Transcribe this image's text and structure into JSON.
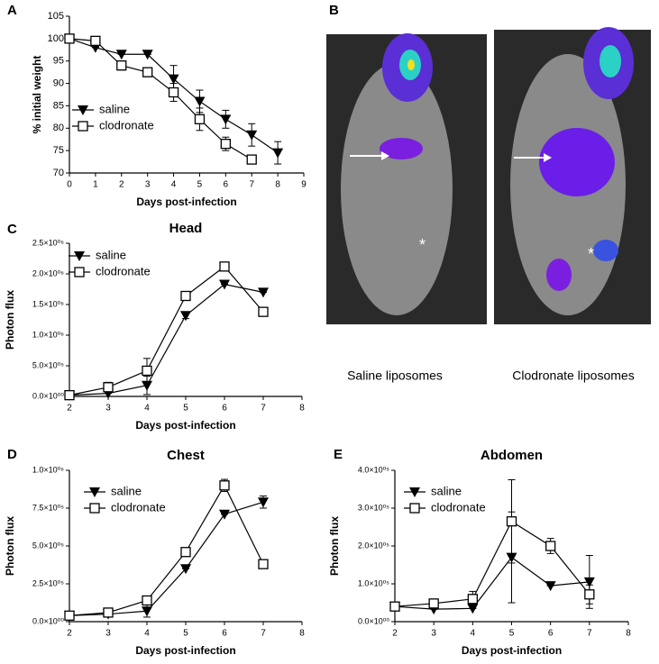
{
  "chart_data": [
    {
      "type": "line",
      "label": "A",
      "xlabel": "Days post-infection",
      "ylabel": "% initial weight",
      "x": [
        0,
        1,
        2,
        3,
        4,
        5,
        6,
        7,
        8
      ],
      "xlim": [
        0,
        9
      ],
      "xticks": [
        0,
        1,
        2,
        3,
        4,
        5,
        6,
        7,
        8,
        9
      ],
      "ylim": [
        70,
        105
      ],
      "yticks": [
        70,
        75,
        80,
        85,
        90,
        95,
        100,
        105
      ],
      "series": [
        {
          "name": "saline",
          "color": "#000000",
          "marker": "triangle-down",
          "values": [
            100,
            98,
            96.5,
            96.5,
            91,
            86,
            82,
            78.5,
            74.5
          ],
          "errors": [
            0,
            0,
            0,
            0,
            3,
            2.5,
            2,
            2.5,
            2.5
          ]
        },
        {
          "name": "clodronate",
          "color": "#000000",
          "marker": "square-open",
          "values": [
            100,
            99.5,
            94,
            92.5,
            88,
            82,
            76.5,
            73,
            null
          ],
          "errors": [
            0,
            0,
            1,
            1,
            2,
            2.5,
            1.5,
            0,
            null
          ]
        }
      ]
    },
    {
      "type": "line",
      "label": "C",
      "title": "Head",
      "xlabel": "Days post-infection",
      "ylabel": "Photon flux",
      "x": [
        2,
        3,
        4,
        5,
        6,
        7
      ],
      "xlim": [
        2,
        8
      ],
      "xticks": [
        2,
        3,
        4,
        5,
        6,
        7,
        8
      ],
      "ylim": [
        0,
        2500000
      ],
      "yticks": [
        {
          "value": 0,
          "label": "0.0×10⁰⁰"
        },
        {
          "value": 500000,
          "label": "5.0×10⁰⁵"
        },
        {
          "value": 1000000,
          "label": "1.0×10⁰⁶"
        },
        {
          "value": 1500000,
          "label": "1.5×10⁰⁶"
        },
        {
          "value": 2000000,
          "label": "2.0×10⁰⁶"
        },
        {
          "value": 2500000,
          "label": "2.5×10⁰⁶"
        }
      ],
      "series": [
        {
          "name": "saline",
          "color": "#000000",
          "marker": "triangle-down",
          "values": [
            20000,
            50000,
            180000,
            1320000,
            1830000,
            1700000
          ],
          "errors": [
            0,
            0,
            150000,
            50000,
            0,
            0
          ]
        },
        {
          "name": "clodronate",
          "color": "#000000",
          "marker": "square-open",
          "values": [
            20000,
            150000,
            420000,
            1640000,
            2120000,
            1380000
          ],
          "errors": [
            0,
            80000,
            200000,
            0,
            0,
            0
          ]
        }
      ]
    },
    {
      "type": "line",
      "label": "D",
      "title": "Chest",
      "xlabel": "Days post-infection",
      "ylabel": "Photon flux",
      "x": [
        2,
        3,
        4,
        5,
        6,
        7
      ],
      "xlim": [
        2,
        8
      ],
      "xticks": [
        2,
        3,
        4,
        5,
        6,
        7,
        8
      ],
      "ylim": [
        0,
        1000000
      ],
      "yticks": [
        {
          "value": 0,
          "label": "0.0×10⁰⁰"
        },
        {
          "value": 250000,
          "label": "2.5×10⁰⁵"
        },
        {
          "value": 500000,
          "label": "5.0×10⁰⁵"
        },
        {
          "value": 750000,
          "label": "7.5×10⁰⁵"
        },
        {
          "value": 1000000,
          "label": "1.0×10⁰⁶"
        }
      ],
      "series": [
        {
          "name": "saline",
          "color": "#000000",
          "marker": "triangle-down",
          "values": [
            40000,
            50000,
            70000,
            350000,
            710000,
            790000
          ],
          "errors": [
            0,
            0,
            40000,
            0,
            0,
            40000
          ]
        },
        {
          "name": "clodronate",
          "color": "#000000",
          "marker": "square-open",
          "values": [
            40000,
            60000,
            140000,
            460000,
            900000,
            380000
          ],
          "errors": [
            0,
            0,
            0,
            0,
            40000,
            0
          ]
        }
      ]
    },
    {
      "type": "line",
      "label": "E",
      "title": "Abdomen",
      "xlabel": "Days post-infection",
      "ylabel": "Photon flux",
      "x": [
        2,
        3,
        4,
        5,
        6,
        7
      ],
      "xlim": [
        2,
        8
      ],
      "xticks": [
        2,
        3,
        4,
        5,
        6,
        7,
        8
      ],
      "ylim": [
        0,
        400000
      ],
      "yticks": [
        {
          "value": 0,
          "label": "0.0×10⁰⁰"
        },
        {
          "value": 100000,
          "label": "1.0×10⁰⁵"
        },
        {
          "value": 200000,
          "label": "2.0×10⁰⁵"
        },
        {
          "value": 300000,
          "label": "3.0×10⁰⁵"
        },
        {
          "value": 400000,
          "label": "4.0×10⁰⁵"
        }
      ],
      "series": [
        {
          "name": "saline",
          "color": "#000000",
          "marker": "triangle-down",
          "values": [
            40000,
            33000,
            35000,
            170000,
            95000,
            105000
          ],
          "errors": [
            0,
            0,
            0,
            120000,
            0,
            70000
          ]
        },
        {
          "name": "clodronate",
          "color": "#000000",
          "marker": "square-open",
          "values": [
            40000,
            48000,
            60000,
            265000,
            200000,
            72000
          ],
          "errors": [
            0,
            5000,
            20000,
            110000,
            20000,
            25000
          ]
        }
      ]
    }
  ],
  "image_panel": {
    "label": "B",
    "captions": [
      "Saline liposomes",
      "Clodronate liposomes"
    ],
    "markers": [
      "*",
      "*"
    ]
  }
}
